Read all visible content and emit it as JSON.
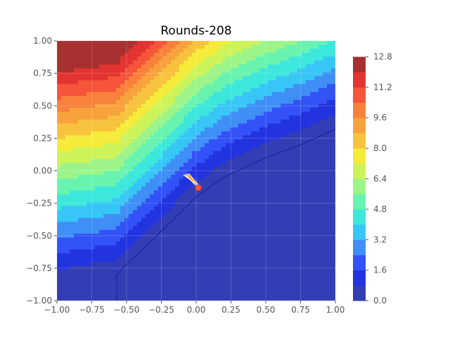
{
  "chart_data": {
    "type": "contour",
    "title": "Rounds-208",
    "xlabel": "",
    "ylabel": "",
    "xlim": [
      -1.0,
      1.0
    ],
    "ylim": [
      -1.0,
      1.0
    ],
    "x_ticks": [
      "−1.00",
      "−0.75",
      "−0.50",
      "−0.25",
      "0.00",
      "0.25",
      "0.50",
      "0.75",
      "1.00"
    ],
    "y_ticks": [
      "−1.00",
      "−0.75",
      "−0.50",
      "−0.25",
      "0.00",
      "0.25",
      "0.50",
      "0.75",
      "1.00"
    ],
    "grid": true,
    "colorbar": {
      "levels": [
        0.0,
        0.8,
        1.6,
        2.4,
        3.2,
        4.0,
        4.8,
        5.6,
        6.4,
        7.2,
        8.0,
        8.8,
        9.6,
        10.4,
        11.2,
        12.0,
        12.8,
        13.6
      ],
      "tick_labels": [
        "0.0",
        "1.6",
        "3.2",
        "4.8",
        "6.4",
        "8.0",
        "9.6",
        "11.2",
        "12.8"
      ],
      "colors": [
        "#343eb4",
        "#2233e0",
        "#3352f7",
        "#3f8ff6",
        "#37c6f6",
        "#3de7dc",
        "#68f4b0",
        "#9df58a",
        "#ccf45a",
        "#f5ec3a",
        "#f7c33e",
        "#f8a23d",
        "#f8823b",
        "#f5553a",
        "#e33431",
        "#a73131"
      ]
    },
    "minimum_curve": [
      [
        -0.57,
        -1.0
      ],
      [
        -0.57,
        -0.8
      ],
      [
        -0.5,
        -0.72
      ],
      [
        -0.3,
        -0.52
      ],
      [
        -0.15,
        -0.36
      ],
      [
        0.0,
        -0.2
      ],
      [
        0.2,
        -0.05
      ],
      [
        0.5,
        0.1
      ],
      [
        0.75,
        0.2
      ],
      [
        1.0,
        0.32
      ]
    ],
    "marker": {
      "x": 0.015,
      "y": -0.13,
      "color": "#f55a3a"
    },
    "trajectory_start": {
      "x": -0.07,
      "y": -0.04
    }
  }
}
